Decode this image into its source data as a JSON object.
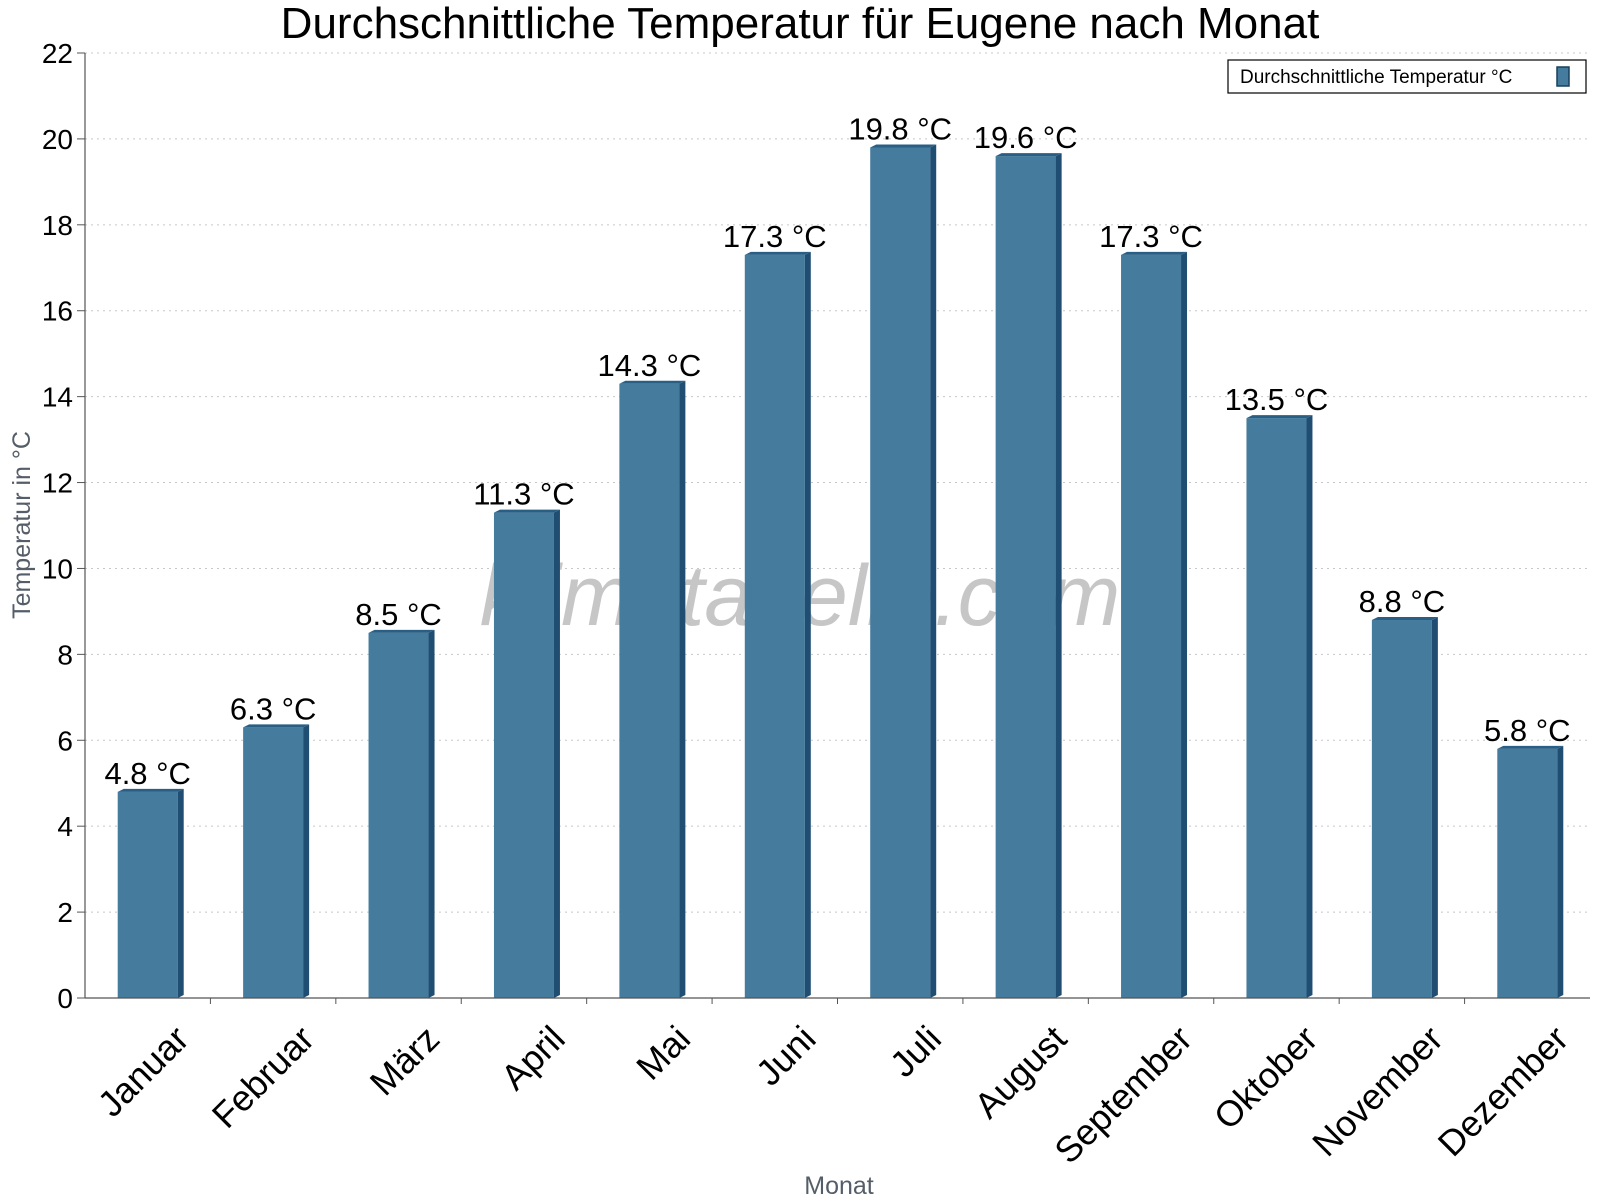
{
  "chart_data": {
    "type": "bar",
    "title": "Durchschnittliche Temperatur für Eugene nach Monat",
    "xlabel": "Monat",
    "ylabel": "Temperatur in °C",
    "ylim": [
      0,
      22
    ],
    "yticks": [
      "0",
      "2",
      "4",
      "6",
      "8",
      "10",
      "12",
      "14",
      "16",
      "18",
      "20",
      "22"
    ],
    "grid": true,
    "legend_position": "top-right",
    "categories": [
      "Januar",
      "Februar",
      "März",
      "April",
      "Mai",
      "Juni",
      "Juli",
      "August",
      "September",
      "Oktober",
      "November",
      "Dezember"
    ],
    "series": [
      {
        "name": "Durchschnittliche Temperatur °C",
        "color": "#457b9d",
        "values": [
          4.8,
          6.3,
          8.5,
          11.3,
          14.3,
          17.3,
          19.8,
          19.6,
          17.3,
          13.5,
          8.8,
          5.8
        ],
        "data_labels": [
          "4.8 °C",
          "6.3 °C",
          "8.5 °C",
          "11.3 °C",
          "14.3 °C",
          "17.3 °C",
          "19.8 °C",
          "19.6 °C",
          "17.3 °C",
          "13.5 °C",
          "8.8 °C",
          "5.8 °C"
        ]
      }
    ],
    "watermark": "klimatabelle.com"
  }
}
